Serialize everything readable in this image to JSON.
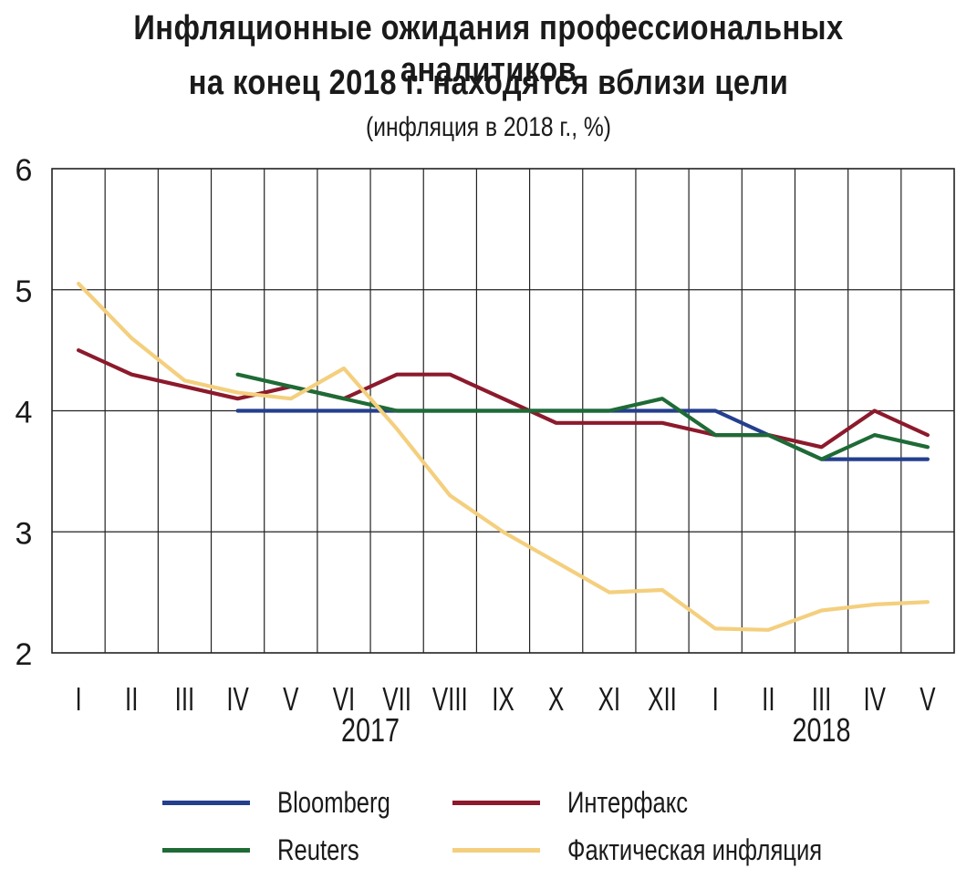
{
  "chart_data": {
    "type": "line",
    "title_lines": [
      "Инфляционные ожидания профессиональных аналитиков",
      "на конец 2018 г. находятся вблизи цели"
    ],
    "subtitle": "(инфляция в  2018 г., %)",
    "categories": [
      "I",
      "II",
      "III",
      "IV",
      "V",
      "VI",
      "VII",
      "VIII",
      "IX",
      "X",
      "XI",
      "XII",
      "I",
      "II",
      "III",
      "IV",
      "V"
    ],
    "year_labels": [
      {
        "label": "2017",
        "category_index": 5.5
      },
      {
        "label": "2018",
        "category_index": 14
      }
    ],
    "ylim": [
      2,
      6
    ],
    "yticks": [
      "2",
      "3",
      "4",
      "5",
      "6"
    ],
    "grid": true,
    "legend_position": "bottom",
    "series": [
      {
        "name": "Bloomberg",
        "color": "#243f8e",
        "values": [
          null,
          null,
          null,
          4.0,
          4.0,
          4.0,
          4.0,
          4.0,
          4.0,
          4.0,
          4.0,
          4.0,
          4.0,
          3.8,
          3.6,
          3.6,
          3.6
        ]
      },
      {
        "name": "Интерфакс",
        "color": "#8c1a2c",
        "values": [
          4.5,
          4.3,
          4.2,
          4.1,
          4.2,
          4.1,
          4.3,
          4.3,
          4.1,
          3.9,
          3.9,
          3.9,
          3.8,
          3.8,
          3.7,
          4.0,
          3.8
        ]
      },
      {
        "name": "Reuters",
        "color": "#1e6b35",
        "values": [
          null,
          null,
          null,
          4.3,
          4.2,
          4.1,
          4.0,
          4.0,
          4.0,
          4.0,
          4.0,
          4.1,
          3.8,
          3.8,
          3.6,
          3.8,
          3.7
        ]
      },
      {
        "name": "Фактическая инфляция",
        "color": "#f4cf7e",
        "values": [
          5.05,
          4.6,
          4.25,
          4.15,
          4.1,
          4.35,
          3.85,
          3.3,
          3.0,
          2.75,
          2.5,
          2.52,
          2.2,
          2.19,
          2.35,
          2.4,
          2.42
        ]
      }
    ]
  }
}
